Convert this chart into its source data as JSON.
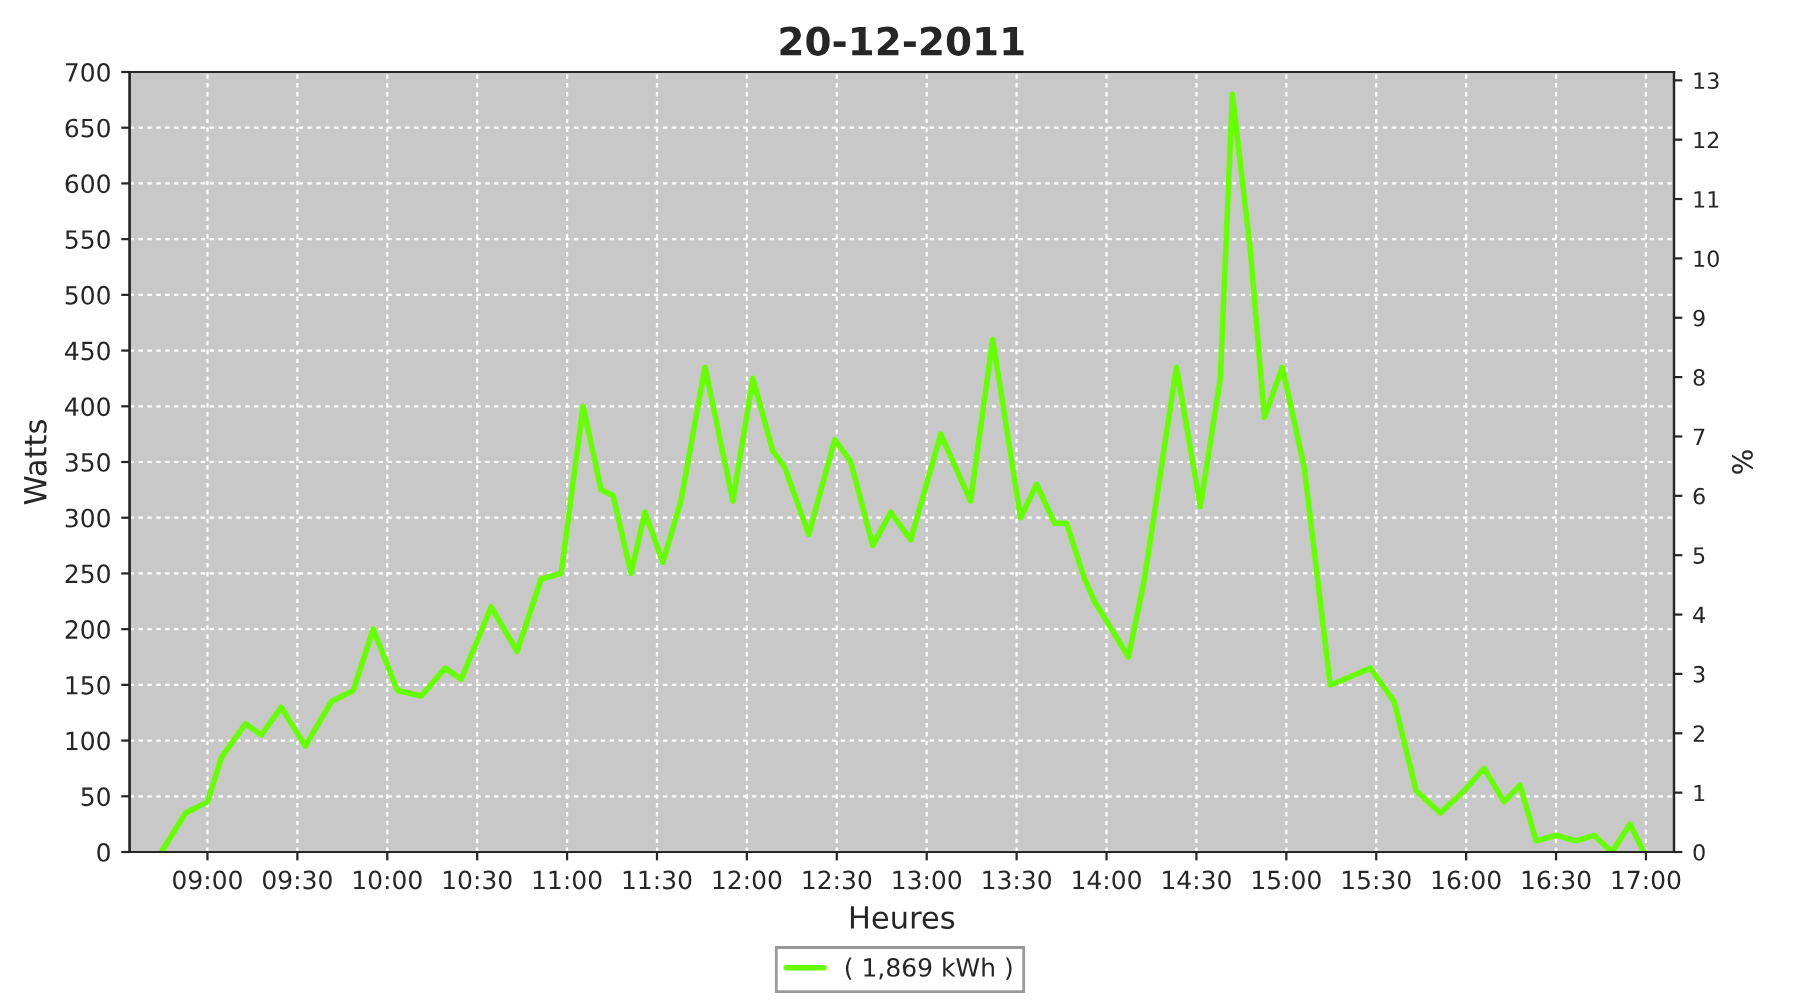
{
  "chart_data": {
    "type": "line",
    "title": "20-12-2011",
    "xlabel": "Heures",
    "ylabel": "Watts",
    "y2label": "%",
    "x": [
      8.744,
      8.878,
      9.0,
      9.078,
      9.211,
      9.3,
      9.41,
      9.544,
      9.689,
      9.811,
      9.922,
      10.056,
      10.189,
      10.322,
      10.411,
      10.578,
      10.722,
      10.856,
      10.967,
      11.089,
      11.189,
      11.256,
      11.356,
      11.433,
      11.533,
      11.633,
      11.767,
      11.922,
      12.033,
      12.144,
      12.211,
      12.344,
      12.489,
      12.578,
      12.7,
      12.8,
      12.911,
      13.078,
      13.244,
      13.367,
      13.522,
      13.611,
      13.711,
      13.778,
      13.878,
      13.933,
      14.122,
      14.211,
      14.389,
      14.522,
      14.633,
      14.7,
      14.8,
      14.878,
      14.978,
      15.1,
      15.244,
      15.322,
      15.467,
      15.6,
      15.722,
      15.856,
      15.989,
      16.1,
      16.211,
      16.3,
      16.389,
      16.5,
      16.611,
      16.711,
      16.811,
      16.911,
      16.989
    ],
    "series": [
      {
        "name": "( 1,869 kWh )",
        "color": "#66ff00",
        "values": [
          0,
          35,
          45,
          85,
          115,
          105,
          130,
          95,
          135,
          145,
          200,
          145,
          140,
          165,
          155,
          220,
          180,
          245,
          250,
          400,
          325,
          320,
          250,
          305,
          260,
          315,
          435,
          315,
          425,
          360,
          345,
          285,
          370,
          350,
          275,
          305,
          280,
          375,
          315,
          460,
          300,
          330,
          295,
          295,
          245,
          225,
          175,
          245,
          435,
          310,
          425,
          680,
          540,
          390,
          435,
          345,
          150,
          155,
          165,
          135,
          55,
          35,
          55,
          75,
          45,
          60,
          10,
          15,
          10,
          15,
          0,
          25,
          0
        ]
      }
    ],
    "xlim": [
      8.567,
      17.156
    ],
    "xticks": [
      {
        "value": 9,
        "label": "09:00"
      },
      {
        "value": 9.5,
        "label": "09:30"
      },
      {
        "value": 10,
        "label": "10:00"
      },
      {
        "value": 10.5,
        "label": "10:30"
      },
      {
        "value": 11,
        "label": "11:00"
      },
      {
        "value": 11.5,
        "label": "11:30"
      },
      {
        "value": 12,
        "label": "12:00"
      },
      {
        "value": 12.5,
        "label": "12:30"
      },
      {
        "value": 13,
        "label": "13:00"
      },
      {
        "value": 13.5,
        "label": "13:30"
      },
      {
        "value": 14,
        "label": "14:00"
      },
      {
        "value": 14.5,
        "label": "14:30"
      },
      {
        "value": 15,
        "label": "15:00"
      },
      {
        "value": 15.5,
        "label": "15:30"
      },
      {
        "value": 16,
        "label": "16:00"
      },
      {
        "value": 16.5,
        "label": "16:30"
      },
      {
        "value": 17,
        "label": "17:00"
      }
    ],
    "ylim": [
      0,
      700
    ],
    "yticks": [
      0,
      50,
      100,
      150,
      200,
      250,
      300,
      350,
      400,
      450,
      500,
      550,
      600,
      650,
      700
    ],
    "y2lim": [
      0,
      13.14
    ],
    "y2ticks": [
      0,
      1,
      2,
      3,
      4,
      5,
      6,
      7,
      8,
      9,
      10,
      11,
      12,
      13
    ],
    "grid": true,
    "legend": "bottom",
    "marker": "none",
    "line_style": "solid"
  }
}
